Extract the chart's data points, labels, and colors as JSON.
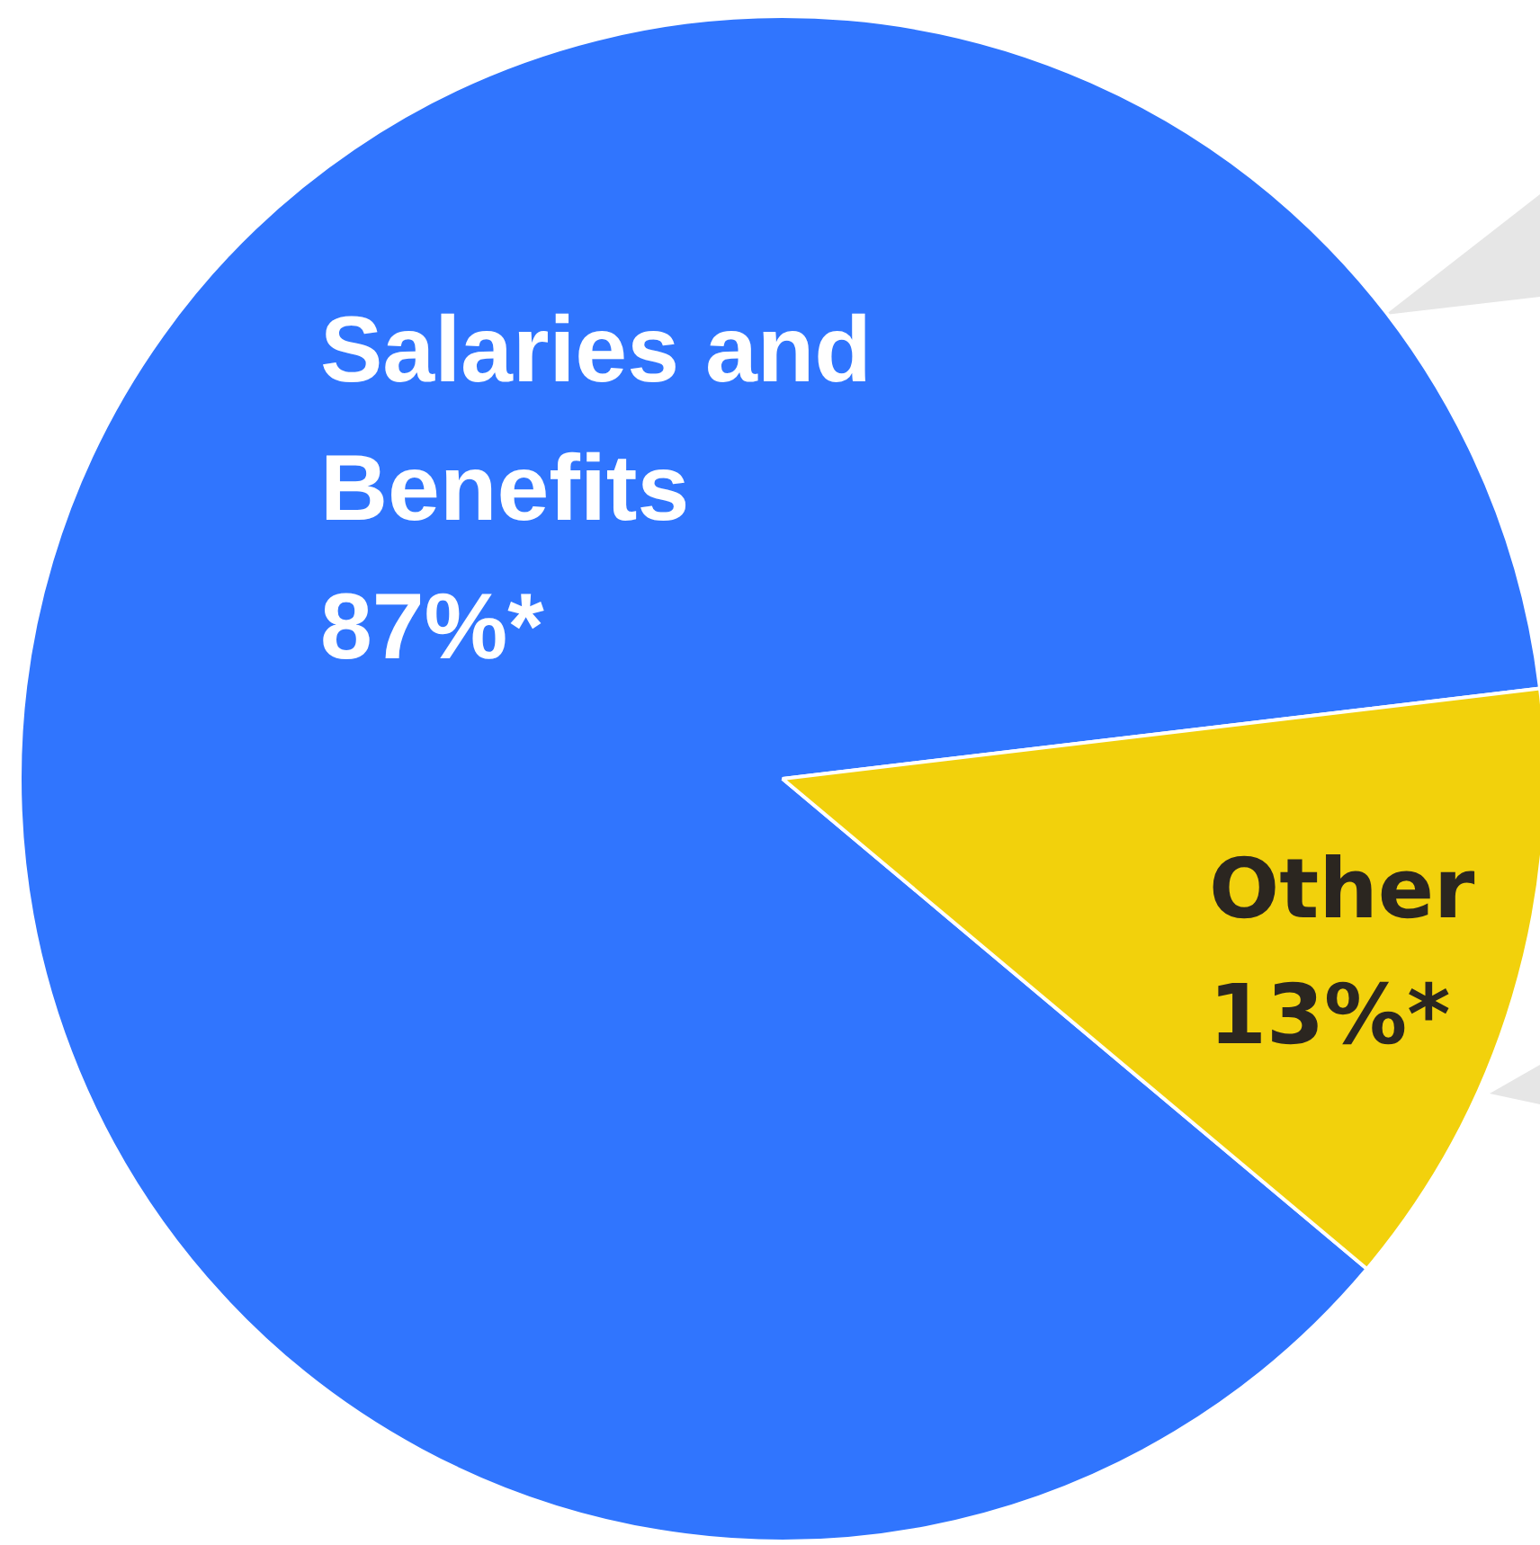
{
  "chart_data": {
    "type": "pie",
    "categories": [
      "Salaries and Benefits",
      "Other"
    ],
    "values": [
      87,
      13
    ],
    "colors": [
      "#3075fe",
      "#f2d10c"
    ],
    "value_labels": [
      "87%*",
      "13%*"
    ],
    "legend": false
  }
}
